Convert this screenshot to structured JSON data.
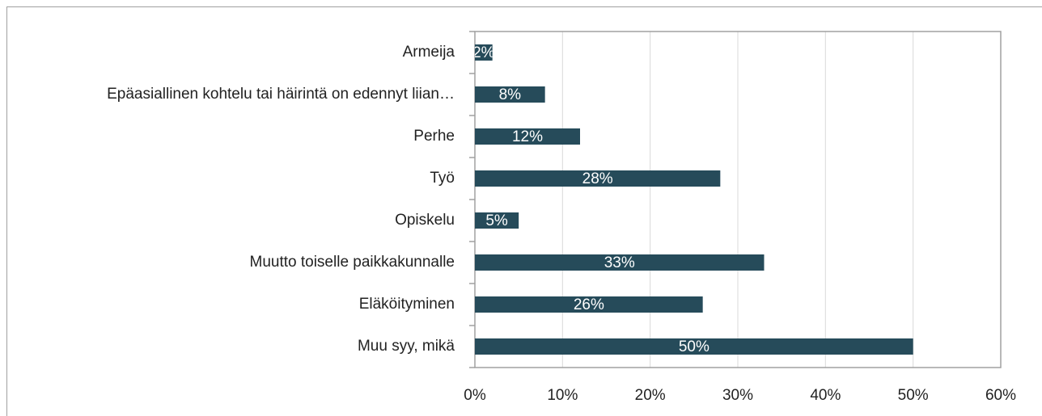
{
  "chart_data": {
    "type": "hbar",
    "categories": [
      "Armeija",
      "Epäasiallinen kohtelu tai häirintä on edennyt liian…",
      "Perhe",
      "Työ",
      "Opiskelu",
      "Muutto toiselle paikkakunnalle",
      "Eläköityminen",
      "Muu syy, mikä"
    ],
    "values": [
      2,
      8,
      12,
      28,
      5,
      33,
      26,
      50
    ],
    "value_labels": [
      "2%",
      "8%",
      "12%",
      "28%",
      "5%",
      "33%",
      "26%",
      "50%"
    ],
    "color": "#264b5a",
    "xlim": [
      0,
      60
    ],
    "xticks": [
      {
        "value": 0,
        "label": "0%"
      },
      {
        "value": 10,
        "label": "10%"
      },
      {
        "value": 20,
        "label": "20%"
      },
      {
        "value": 30,
        "label": "30%"
      },
      {
        "value": 40,
        "label": "40%"
      },
      {
        "value": 50,
        "label": "50%"
      },
      {
        "value": 60,
        "label": "60%"
      }
    ],
    "grid": true
  }
}
